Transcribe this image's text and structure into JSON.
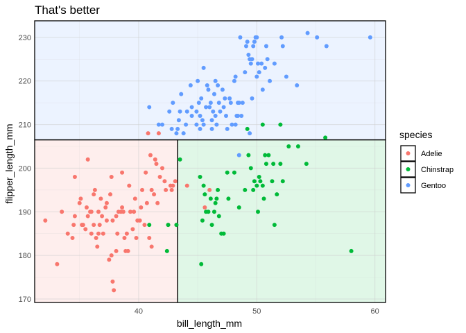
{
  "chart_data": {
    "type": "scatter",
    "title": "That's better",
    "xlabel": "bill_length_mm",
    "ylabel": "flipper_length_mm",
    "xlim": [
      31.2,
      60.9
    ],
    "ylim": [
      169.2,
      233.8
    ],
    "x_ticks": [
      40,
      50,
      60
    ],
    "y_ticks": [
      170,
      180,
      190,
      200,
      210,
      220,
      230
    ],
    "grid": true,
    "legend": {
      "title": "species",
      "placement": "right"
    },
    "regions": [
      {
        "series": "Gentoo",
        "x": [
          31.2,
          60.9
        ],
        "y": [
          206.5,
          233.8
        ],
        "color": "#619CFF"
      },
      {
        "series": "Adelie",
        "x": [
          31.2,
          43.3
        ],
        "y": [
          169.2,
          206.5
        ],
        "color": "#F8766D"
      },
      {
        "series": "Chinstrap",
        "x": [
          43.3,
          60.9
        ],
        "y": [
          169.2,
          206.5
        ],
        "color": "#00BA38"
      }
    ],
    "series": [
      {
        "name": "Adelie",
        "color": "#F8766D",
        "points": [
          [
            32.1,
            188
          ],
          [
            33.1,
            178
          ],
          [
            33.5,
            190
          ],
          [
            34.0,
            185
          ],
          [
            34.4,
            184
          ],
          [
            34.5,
            187
          ],
          [
            34.6,
            198
          ],
          [
            34.6,
            189
          ],
          [
            35.0,
            192
          ],
          [
            35.1,
            193
          ],
          [
            35.2,
            187
          ],
          [
            35.3,
            187
          ],
          [
            35.5,
            186
          ],
          [
            35.6,
            191
          ],
          [
            35.7,
            189
          ],
          [
            35.9,
            190
          ],
          [
            36.0,
            185
          ],
          [
            36.0,
            190
          ],
          [
            36.2,
            187
          ],
          [
            36.2,
            194
          ],
          [
            36.3,
            195
          ],
          [
            36.4,
            184
          ],
          [
            36.5,
            182
          ],
          [
            36.6,
            185
          ],
          [
            36.6,
            190
          ],
          [
            36.7,
            187
          ],
          [
            36.8,
            193
          ],
          [
            36.9,
            189
          ],
          [
            37.0,
            185
          ],
          [
            37.2,
            191
          ],
          [
            37.3,
            188
          ],
          [
            37.3,
            192
          ],
          [
            37.5,
            179
          ],
          [
            37.6,
            194
          ],
          [
            37.7,
            180
          ],
          [
            37.7,
            198
          ],
          [
            37.8,
            174
          ],
          [
            37.8,
            188
          ],
          [
            37.9,
            172
          ],
          [
            38.1,
            181
          ],
          [
            38.1,
            189
          ],
          [
            38.2,
            185
          ],
          [
            38.3,
            190
          ],
          [
            38.5,
            190
          ],
          [
            38.6,
            191
          ],
          [
            38.6,
            199
          ],
          [
            38.7,
            190
          ],
          [
            38.8,
            184
          ],
          [
            38.9,
            181
          ],
          [
            39.0,
            185
          ],
          [
            39.1,
            181
          ],
          [
            39.2,
            196
          ],
          [
            39.3,
            190
          ],
          [
            39.5,
            186
          ],
          [
            39.6,
            190
          ],
          [
            39.7,
            193
          ],
          [
            39.8,
            184
          ],
          [
            39.9,
            188
          ],
          [
            40.1,
            188
          ],
          [
            40.2,
            191
          ],
          [
            40.3,
            195
          ],
          [
            40.5,
            187
          ],
          [
            40.6,
            199
          ],
          [
            40.7,
            192
          ],
          [
            40.8,
            208
          ],
          [
            40.9,
            184
          ],
          [
            41.0,
            203
          ],
          [
            41.1,
            182
          ],
          [
            41.1,
            195
          ],
          [
            41.3,
            194
          ],
          [
            41.4,
            202
          ],
          [
            41.5,
            201
          ],
          [
            41.6,
            192
          ],
          [
            41.8,
            198
          ],
          [
            42.0,
            200
          ],
          [
            42.2,
            197
          ],
          [
            42.3,
            195
          ],
          [
            42.5,
            187
          ],
          [
            42.7,
            196
          ],
          [
            42.8,
            195
          ],
          [
            42.9,
            196
          ],
          [
            43.1,
            197
          ],
          [
            43.2,
            187
          ],
          [
            44.1,
            196
          ],
          [
            45.6,
            191
          ],
          [
            46.0,
            195
          ],
          [
            35.7,
            202
          ],
          [
            41.7,
            208
          ]
        ]
      },
      {
        "name": "Chinstrap",
        "color": "#00BA38",
        "points": [
          [
            40.9,
            187
          ],
          [
            42.4,
            181
          ],
          [
            42.5,
            187
          ],
          [
            43.2,
            187
          ],
          [
            43.5,
            202
          ],
          [
            45.2,
            198
          ],
          [
            45.4,
            188
          ],
          [
            45.5,
            196
          ],
          [
            45.6,
            194
          ],
          [
            45.7,
            190
          ],
          [
            45.9,
            190
          ],
          [
            46.1,
            193
          ],
          [
            46.2,
            187
          ],
          [
            46.4,
            190
          ],
          [
            46.5,
            192
          ],
          [
            46.6,
            193
          ],
          [
            46.7,
            195
          ],
          [
            46.8,
            189
          ],
          [
            47.0,
            185
          ],
          [
            47.5,
            199
          ],
          [
            47.6,
            193
          ],
          [
            48.1,
            199
          ],
          [
            48.5,
            191
          ],
          [
            49.0,
            195
          ],
          [
            49.3,
            203
          ],
          [
            49.5,
            200
          ],
          [
            49.7,
            195
          ],
          [
            49.8,
            197
          ],
          [
            50.0,
            196
          ],
          [
            50.1,
            190
          ],
          [
            50.2,
            198
          ],
          [
            50.3,
            197
          ],
          [
            50.5,
            196
          ],
          [
            50.6,
            193
          ],
          [
            50.7,
            203
          ],
          [
            50.8,
            201
          ],
          [
            51.0,
            203
          ],
          [
            51.3,
            197
          ],
          [
            51.4,
            201
          ],
          [
            51.5,
            187
          ],
          [
            51.7,
            194
          ],
          [
            52.0,
            201
          ],
          [
            52.2,
            197
          ],
          [
            52.7,
            205
          ],
          [
            53.5,
            205
          ],
          [
            54.2,
            201
          ],
          [
            55.8,
            207
          ],
          [
            58.0,
            181
          ],
          [
            45.3,
            178
          ],
          [
            47.2,
            185
          ],
          [
            49.2,
            209
          ],
          [
            50.5,
            210
          ],
          [
            52.0,
            210
          ]
        ]
      },
      {
        "name": "Gentoo",
        "color": "#619CFF",
        "points": [
          [
            40.9,
            214
          ],
          [
            41.7,
            210
          ],
          [
            42.0,
            210
          ],
          [
            42.6,
            213
          ],
          [
            42.8,
            209
          ],
          [
            43.2,
            208
          ],
          [
            43.3,
            209
          ],
          [
            43.5,
            213
          ],
          [
            43.6,
            217
          ],
          [
            43.8,
            208
          ],
          [
            44.0,
            210
          ],
          [
            44.4,
            219
          ],
          [
            44.5,
            214
          ],
          [
            44.9,
            213
          ],
          [
            45.0,
            220
          ],
          [
            45.1,
            215
          ],
          [
            45.2,
            212
          ],
          [
            45.3,
            216
          ],
          [
            45.4,
            211
          ],
          [
            45.5,
            210
          ],
          [
            45.7,
            214
          ],
          [
            45.8,
            219
          ],
          [
            46.1,
            215
          ],
          [
            46.2,
            211
          ],
          [
            46.3,
            213
          ],
          [
            46.4,
            217
          ],
          [
            46.5,
            212
          ],
          [
            46.6,
            210
          ],
          [
            46.8,
            215
          ],
          [
            47.2,
            214
          ],
          [
            47.4,
            212
          ],
          [
            47.5,
            209
          ],
          [
            47.7,
            216
          ],
          [
            47.8,
            215
          ],
          [
            48.1,
            220
          ],
          [
            48.2,
            221
          ],
          [
            48.4,
            215
          ],
          [
            48.5,
            215
          ],
          [
            48.7,
            212
          ],
          [
            49.0,
            222
          ],
          [
            49.1,
            228
          ],
          [
            49.2,
            229
          ],
          [
            49.3,
            226
          ],
          [
            49.4,
            225
          ],
          [
            49.5,
            224
          ],
          [
            49.6,
            225
          ],
          [
            49.8,
            229
          ],
          [
            49.9,
            230
          ],
          [
            50.0,
            230
          ],
          [
            50.1,
            224
          ],
          [
            50.2,
            222
          ],
          [
            50.4,
            224
          ],
          [
            50.5,
            218
          ],
          [
            50.7,
            223
          ],
          [
            50.8,
            228
          ],
          [
            51.1,
            220
          ],
          [
            52.1,
            230
          ],
          [
            52.2,
            228
          ],
          [
            52.5,
            221
          ],
          [
            53.4,
            219
          ],
          [
            54.3,
            231
          ],
          [
            55.1,
            230
          ],
          [
            55.9,
            228
          ],
          [
            59.6,
            230
          ],
          [
            45.5,
            223
          ],
          [
            46.0,
            214
          ],
          [
            47.3,
            216
          ],
          [
            48.6,
            230
          ],
          [
            46.9,
            213
          ],
          [
            44.5,
            212
          ],
          [
            42.9,
            215
          ],
          [
            49.6,
            216
          ],
          [
            46.5,
            220
          ],
          [
            45.2,
            209
          ],
          [
            43.4,
            211
          ],
          [
            50.9,
            225
          ],
          [
            48.3,
            212
          ],
          [
            47.1,
            218
          ],
          [
            44.1,
            213
          ],
          [
            48.8,
            215
          ],
          [
            46.7,
            219
          ],
          [
            49.7,
            228
          ],
          [
            51.5,
            224
          ],
          [
            47.9,
            210
          ],
          [
            45.9,
            218
          ],
          [
            48.4,
            212
          ],
          [
            50.0,
            221
          ],
          [
            46.2,
            209
          ],
          [
            44.9,
            210
          ],
          [
            48.2,
            210
          ],
          [
            49.4,
            208
          ],
          [
            48.5,
            203
          ]
        ]
      }
    ]
  }
}
